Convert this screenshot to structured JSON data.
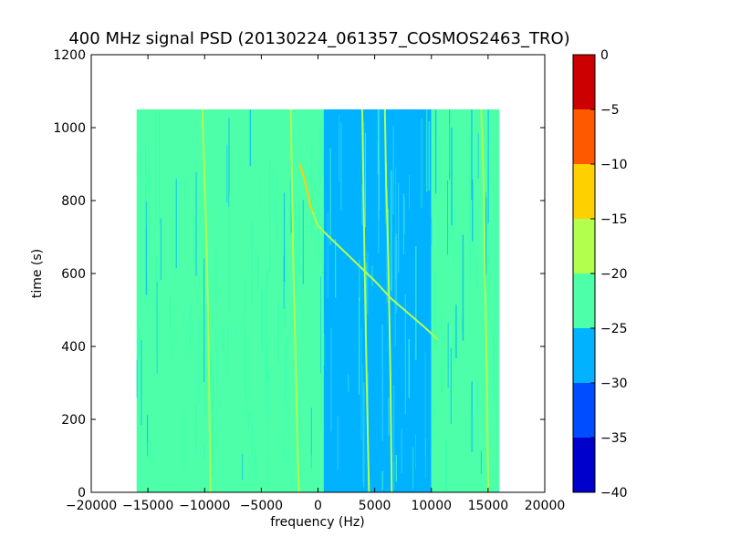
{
  "chart_data": {
    "type": "heatmap",
    "title": "400 MHz signal PSD (20130224_061357_COSMOS2463_TRO)",
    "xlabel": "frequency (Hz)",
    "ylabel": "time (s)",
    "xlim": [
      -20000,
      20000
    ],
    "ylim": [
      0,
      1200
    ],
    "x_ticks": [
      -20000,
      -15000,
      -10000,
      -5000,
      0,
      5000,
      10000,
      15000,
      20000
    ],
    "x_tick_labels": [
      "−20000",
      "−15000",
      "−10000",
      "−5000",
      "0",
      "5000",
      "10000",
      "15000",
      "20000"
    ],
    "y_ticks": [
      0,
      200,
      400,
      600,
      800,
      1000,
      1200
    ],
    "y_tick_labels": [
      "0",
      "200",
      "400",
      "600",
      "800",
      "1000",
      "1200"
    ],
    "data_extent": {
      "x": [
        -16000,
        16000
      ],
      "y": [
        0,
        1050
      ]
    },
    "colorbar": {
      "levels": [
        -40,
        -35,
        -30,
        -25,
        -20,
        -15,
        -10,
        -5,
        0
      ],
      "tick_labels": [
        "−40",
        "−35",
        "−30",
        "−25",
        "−20",
        "−15",
        "−10",
        "−5",
        "0"
      ],
      "colors": [
        "#0000cc",
        "#004cff",
        "#00b2ff",
        "#4dffa9",
        "#b3ff4d",
        "#ffd000",
        "#ff5900",
        "#cc0000"
      ]
    },
    "regions": [
      {
        "x": [
          -16000,
          500
        ],
        "level_band": "-25 to -20"
      },
      {
        "x": [
          500,
          10000
        ],
        "level_band": "-30 to -25"
      },
      {
        "x": [
          10000,
          16000
        ],
        "level_band": "-25 to -20"
      }
    ],
    "signal_traces": [
      {
        "band": "-15 to -10",
        "points": [
          [
            -1600,
            900
          ],
          [
            -1200,
            860
          ],
          [
            -900,
            820
          ],
          [
            -700,
            790
          ],
          [
            -500,
            770
          ]
        ]
      },
      {
        "band": "-20 to -15",
        "points": [
          [
            -500,
            770
          ],
          [
            0,
            730
          ],
          [
            1000,
            700
          ],
          [
            3000,
            640
          ],
          [
            5000,
            580
          ],
          [
            6500,
            530
          ],
          [
            8000,
            490
          ],
          [
            9500,
            450
          ],
          [
            10500,
            420
          ]
        ]
      },
      {
        "band": "-20 to -15",
        "points": [
          [
            15000,
            0
          ],
          [
            14900,
            300
          ],
          [
            14700,
            650
          ],
          [
            14600,
            850
          ],
          [
            14400,
            1050
          ]
        ]
      },
      {
        "band": "-20 to -15",
        "points": [
          [
            6500,
            0
          ],
          [
            6400,
            300
          ],
          [
            6200,
            650
          ],
          [
            6000,
            850
          ],
          [
            5900,
            1050
          ]
        ]
      },
      {
        "band": "-20 to -15",
        "points": [
          [
            4500,
            0
          ],
          [
            4300,
            300
          ],
          [
            4100,
            650
          ],
          [
            4000,
            850
          ],
          [
            3900,
            1050
          ]
        ]
      },
      {
        "band": "-20 to -15",
        "points": [
          [
            -1700,
            0
          ],
          [
            -2000,
            400
          ],
          [
            -2200,
            650
          ],
          [
            -2300,
            850
          ],
          [
            -2400,
            1050
          ]
        ]
      },
      {
        "band": "-20 to -15",
        "points": [
          [
            -9500,
            0
          ],
          [
            -9600,
            300
          ],
          [
            -9800,
            650
          ],
          [
            -10000,
            850
          ],
          [
            -10200,
            1050
          ]
        ]
      }
    ]
  }
}
